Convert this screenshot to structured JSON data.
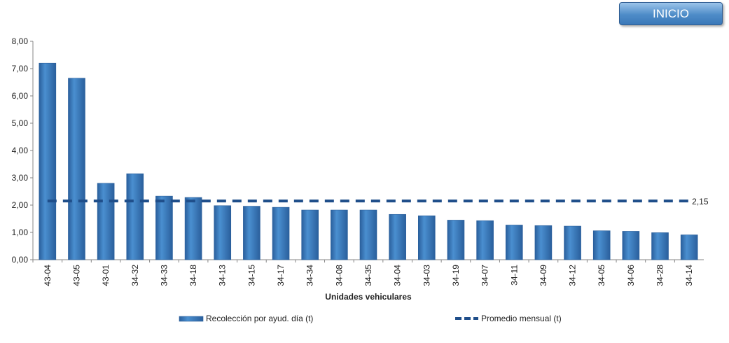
{
  "button": {
    "label": "INICIO"
  },
  "colors": {
    "bar": "#4a8fd0",
    "bar_dark": "#2a5f9c",
    "line": "#1f4e8a",
    "axis": "#868686",
    "text": "#222222"
  },
  "chart_data": {
    "type": "bar",
    "xlabel": "Unidades vehiculares",
    "ylabel": "",
    "ylim": [
      0,
      8
    ],
    "y_ticks": [
      "0,00",
      "1,00",
      "2,00",
      "3,00",
      "4,00",
      "5,00",
      "6,00",
      "7,00",
      "8,00"
    ],
    "categories": [
      "43-04",
      "43-05",
      "43-01",
      "34-32",
      "34-33",
      "34-18",
      "34-13",
      "34-15",
      "34-17",
      "34-34",
      "34-08",
      "34-35",
      "34-04",
      "34-03",
      "34-19",
      "34-07",
      "34-11",
      "34-09",
      "34-12",
      "34-05",
      "34-06",
      "34-28",
      "34-14"
    ],
    "series": [
      {
        "name": "Recolección por ayud. día (t)",
        "type": "bar",
        "values": [
          7.2,
          6.65,
          2.8,
          3.15,
          2.33,
          2.28,
          1.98,
          1.96,
          1.92,
          1.82,
          1.82,
          1.82,
          1.66,
          1.61,
          1.45,
          1.43,
          1.27,
          1.25,
          1.23,
          1.06,
          1.04,
          0.99,
          0.91
        ]
      },
      {
        "name": "Promedio mensual (t)",
        "type": "line",
        "style": "dashed",
        "value": 2.15,
        "label": "2,15"
      }
    ],
    "legend": "bottom",
    "grid": false
  }
}
